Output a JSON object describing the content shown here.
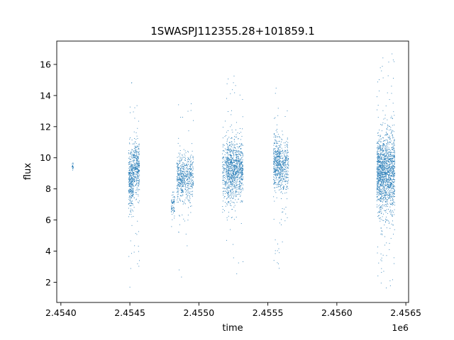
{
  "chart_data": {
    "type": "scatter",
    "title": "1SWASPJ112355.28+101859.1",
    "xlabel": "time",
    "ylabel": "flux",
    "x_offset_label": "1e6",
    "xlim": [
      2453970,
      2456520
    ],
    "ylim": [
      0.7,
      17.5
    ],
    "x_ticks": [
      2454000,
      2454500,
      2455000,
      2455500,
      2456000,
      2456500
    ],
    "x_tick_labels": [
      "2.4540",
      "2.4545",
      "2.4550",
      "2.4555",
      "2.4560",
      "2.4565"
    ],
    "y_ticks": [
      2,
      4,
      6,
      8,
      10,
      12,
      14,
      16
    ],
    "y_tick_labels": [
      "2",
      "4",
      "6",
      "8",
      "10",
      "12",
      "14",
      "16"
    ],
    "grid": false,
    "marker_color": "#1f77b4",
    "series": [
      {
        "clusters": [
          {
            "t_start": 2454080,
            "t_end": 2454090,
            "center": 9.5,
            "core_spread": 0.2,
            "outlier_min": 9.2,
            "outlier_max": 9.8,
            "density": 20
          },
          {
            "t_start": 2454490,
            "t_end": 2454525,
            "center": 8.6,
            "core_spread": 1.6,
            "outlier_min": 1.5,
            "outlier_max": 16.3,
            "density": 350
          },
          {
            "t_start": 2454525,
            "t_end": 2454570,
            "center": 9.4,
            "core_spread": 1.5,
            "outlier_min": 2.0,
            "outlier_max": 14.0,
            "density": 350
          },
          {
            "t_start": 2454800,
            "t_end": 2454825,
            "center": 7.0,
            "core_spread": 0.7,
            "outlier_min": 5.5,
            "outlier_max": 8.5,
            "density": 70
          },
          {
            "t_start": 2454840,
            "t_end": 2454890,
            "center": 8.7,
            "core_spread": 1.2,
            "outlier_min": 1.5,
            "outlier_max": 13.5,
            "density": 300
          },
          {
            "t_start": 2454890,
            "t_end": 2454960,
            "center": 8.8,
            "core_spread": 1.2,
            "outlier_min": 4.0,
            "outlier_max": 13.5,
            "density": 300
          },
          {
            "t_start": 2455170,
            "t_end": 2455200,
            "center": 9.0,
            "core_spread": 1.5,
            "outlier_min": 6.5,
            "outlier_max": 13.0,
            "density": 120
          },
          {
            "t_start": 2455200,
            "t_end": 2455260,
            "center": 9.2,
            "core_spread": 1.7,
            "outlier_min": 1.8,
            "outlier_max": 16.0,
            "density": 550
          },
          {
            "t_start": 2455260,
            "t_end": 2455320,
            "center": 9.3,
            "core_spread": 1.6,
            "outlier_min": 2.0,
            "outlier_max": 15.0,
            "density": 450
          },
          {
            "t_start": 2455540,
            "t_end": 2455590,
            "center": 9.6,
            "core_spread": 1.4,
            "outlier_min": 1.5,
            "outlier_max": 16.0,
            "density": 400
          },
          {
            "t_start": 2455590,
            "t_end": 2455650,
            "center": 9.4,
            "core_spread": 1.3,
            "outlier_min": 4.5,
            "outlier_max": 13.5,
            "density": 300
          },
          {
            "t_start": 2456290,
            "t_end": 2456340,
            "center": 9.0,
            "core_spread": 2.0,
            "outlier_min": 1.5,
            "outlier_max": 16.8,
            "density": 700
          },
          {
            "t_start": 2456340,
            "t_end": 2456420,
            "center": 9.1,
            "core_spread": 2.1,
            "outlier_min": 1.4,
            "outlier_max": 16.8,
            "density": 900
          }
        ]
      }
    ]
  }
}
